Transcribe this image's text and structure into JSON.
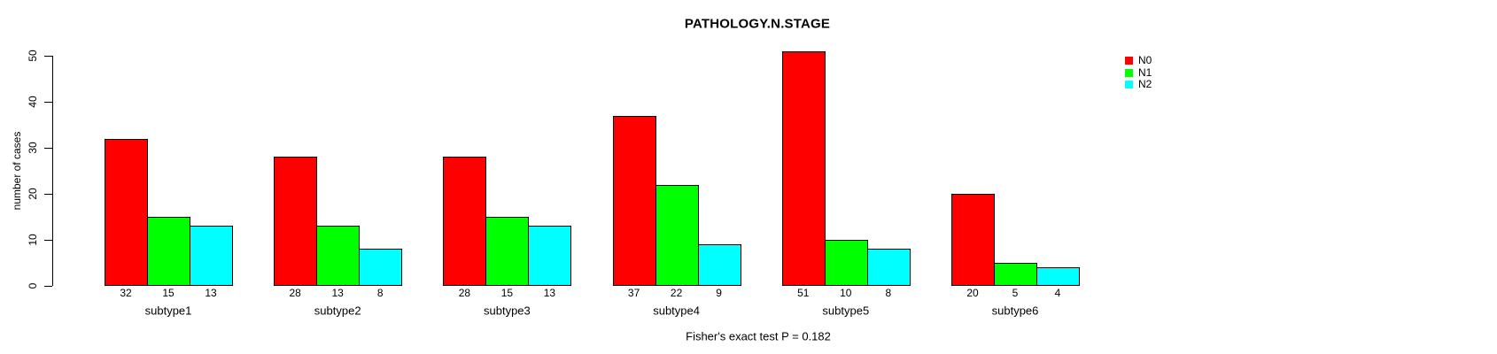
{
  "chart_data": {
    "type": "bar",
    "title": "PATHOLOGY.N.STAGE",
    "ylabel": "number of cases",
    "xlabel": "",
    "categories": [
      "subtype1",
      "subtype2",
      "subtype3",
      "subtype4",
      "subtype5",
      "subtype6"
    ],
    "series": [
      {
        "name": "N0",
        "color": "#ff0000",
        "values": [
          32,
          28,
          28,
          37,
          51,
          20
        ]
      },
      {
        "name": "N1",
        "color": "#00ff00",
        "values": [
          15,
          13,
          15,
          22,
          10,
          5
        ]
      },
      {
        "name": "N2",
        "color": "#00ffff",
        "values": [
          13,
          8,
          13,
          9,
          8,
          4
        ]
      }
    ],
    "ylim": [
      0,
      50
    ],
    "yticks": [
      0,
      10,
      20,
      30,
      40,
      50
    ],
    "bar_value_labels": true,
    "grid": false,
    "legend_position": "top-right",
    "bar_border_color": "#000000",
    "background": "#ffffff",
    "caption": "Fisher's exact test P = 0.182"
  }
}
